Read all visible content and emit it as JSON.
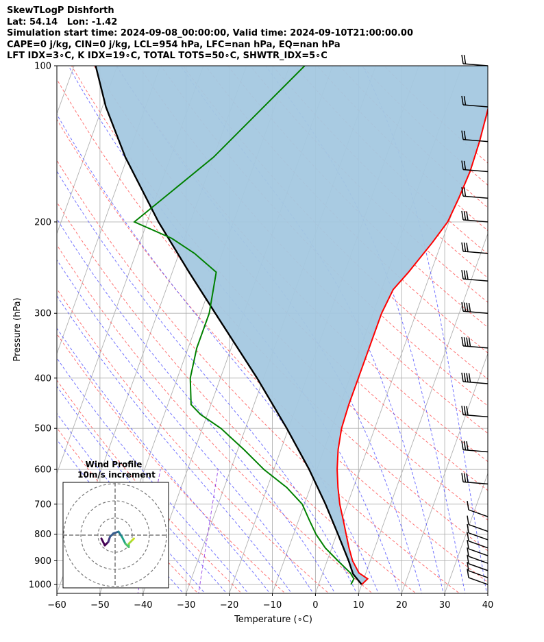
{
  "header": {
    "line1": "SkewTLogP Dishforth",
    "line2": "Lat: 54.14   Lon: -1.42",
    "line3": "Simulation start time: 2024-09-08_00:00:00, Valid time: 2024-09-10T21:00:00.00",
    "line4": "CAPE=0 j/kg, CIN=0 j/kg, LCL=954 hPa, LFC=nan hPa, EQ=nan hPa",
    "line5": "LFT IDX=3∘C, K IDX=19∘C, TOTAL TOTS=50∘C, SHWTR_IDX=5∘C"
  },
  "colors": {
    "temperature": "#ff0000",
    "dewpoint": "#008000",
    "parcel": "#000000",
    "cape_fill": "#a4c8e0",
    "isotherm": "#b0b0b0",
    "dry_adiabat": "#ff5a5a",
    "moist_adiabat": "#5a5aff",
    "mixing_ratio": "#8a2be2"
  },
  "chart_data": [
    {
      "type": "line",
      "subtype": "skew-t log-p",
      "xlabel": "Temperature (∘C)",
      "ylabel": "Pressure (hPa)",
      "xlim": [
        -60,
        40
      ],
      "ylim": [
        1040,
        100
      ],
      "yscale": "log",
      "x_ticks": [
        -60,
        -50,
        -40,
        -30,
        -20,
        -10,
        0,
        10,
        20,
        30,
        40
      ],
      "x_tick_labels": [
        "−60",
        "−50",
        "−40",
        "−30",
        "−20",
        "−10",
        "0",
        "10",
        "20",
        "30",
        "40"
      ],
      "y_ticks": [
        1000,
        900,
        800,
        700,
        600,
        500,
        400,
        300,
        200,
        100
      ],
      "y_tick_labels": [
        "1000",
        "900",
        "800",
        "700",
        "600",
        "500",
        "400",
        "300",
        "200",
        "100"
      ],
      "grid": true,
      "series": [
        {
          "key": "temperature",
          "points": [
            [
              1000,
              10.0
            ],
            [
              975,
              10.9
            ],
            [
              950,
              8.4
            ],
            [
              900,
              5.9
            ],
            [
              850,
              4.0
            ],
            [
              800,
              2.2
            ],
            [
              750,
              0.3
            ],
            [
              700,
              -1.8
            ],
            [
              650,
              -3.6
            ],
            [
              600,
              -5.3
            ],
            [
              550,
              -6.7
            ],
            [
              500,
              -7.7
            ],
            [
              450,
              -8.0
            ],
            [
              400,
              -8.0
            ],
            [
              350,
              -8.0
            ],
            [
              300,
              -8.0
            ],
            [
              270,
              -7.3
            ],
            [
              250,
              -5.2
            ],
            [
              220,
              -2.2
            ],
            [
              200,
              -0.3
            ],
            [
              180,
              0.3
            ],
            [
              160,
              0.7
            ],
            [
              140,
              0.4
            ],
            [
              120,
              -0.4
            ],
            [
              110,
              -0.4
            ],
            [
              100,
              0.2
            ]
          ]
        },
        {
          "key": "dewpoint",
          "points": [
            [
              1000,
              7.5
            ],
            [
              975,
              7.7
            ],
            [
              950,
              6.4
            ],
            [
              900,
              2.5
            ],
            [
              850,
              -1.5
            ],
            [
              800,
              -4.8
            ],
            [
              750,
              -7.6
            ],
            [
              700,
              -10.5
            ],
            [
              650,
              -15.5
            ],
            [
              600,
              -22.3
            ],
            [
              550,
              -28.5
            ],
            [
              500,
              -35.7
            ],
            [
              470,
              -41.6
            ],
            [
              450,
              -44.6
            ],
            [
              400,
              -47.0
            ],
            [
              350,
              -48.0
            ],
            [
              300,
              -48.0
            ],
            [
              250,
              -49.8
            ],
            [
              230,
              -56.4
            ],
            [
              215,
              -63.0
            ],
            [
              200,
              -73.0
            ],
            [
              150,
              -60.0
            ],
            [
              100,
              -46.5
            ]
          ]
        },
        {
          "key": "parcel",
          "points": [
            [
              1000,
              10.0
            ],
            [
              954,
              7.1
            ],
            [
              900,
              5.0
            ],
            [
              800,
              0.3
            ],
            [
              700,
              -5.1
            ],
            [
              600,
              -11.8
            ],
            [
              500,
              -20.4
            ],
            [
              400,
              -31.5
            ],
            [
              300,
              -46.6
            ],
            [
              250,
              -56.1
            ],
            [
              200,
              -67.4
            ],
            [
              150,
              -80.5
            ],
            [
              120,
              -89.2
            ],
            [
              100,
              -95.0
            ]
          ]
        }
      ],
      "wind_barbs_pressure": [
        100,
        120,
        140,
        160,
        180,
        200,
        230,
        260,
        300,
        350,
        410,
        475,
        555,
        640,
        740,
        790,
        820,
        850,
        880,
        910,
        940,
        970,
        1000
      ]
    },
    {
      "type": "line",
      "subtype": "hodograph",
      "title": "Wind Profile",
      "subtitle": "10m/s increment",
      "rings": [
        10,
        20,
        30
      ],
      "points": [
        [
          8,
          -2
        ],
        [
          6,
          -6
        ],
        [
          4,
          -4
        ],
        [
          3,
          -1
        ],
        [
          1,
          1
        ],
        [
          -2,
          2
        ],
        [
          -4,
          -1
        ],
        [
          -6,
          -5
        ],
        [
          -8,
          -7
        ],
        [
          -8,
          -5
        ],
        [
          -10,
          -3
        ],
        [
          -11,
          -2
        ]
      ]
    }
  ]
}
